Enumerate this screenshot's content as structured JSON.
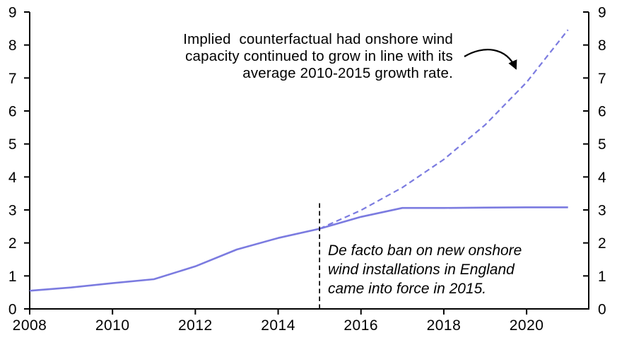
{
  "chart_data": {
    "type": "line",
    "title": "",
    "xlabel": "",
    "ylabel": "",
    "xlim": [
      2008,
      2021.5
    ],
    "ylim": [
      0,
      9
    ],
    "xticks": [
      2008,
      2010,
      2012,
      2014,
      2016,
      2018,
      2020
    ],
    "yticks": [
      0,
      1,
      2,
      3,
      4,
      5,
      6,
      7,
      8,
      9
    ],
    "y_axis_both_sides": true,
    "grid": false,
    "legend": "none",
    "line_color": "#7b7be0",
    "axis_color": "#000000",
    "series": [
      {
        "name": "actual-onshore-wind-capacity",
        "style": "solid",
        "x": [
          2008,
          2009,
          2010,
          2011,
          2012,
          2013,
          2014,
          2015,
          2016,
          2017,
          2018,
          2019,
          2020,
          2021
        ],
        "values": [
          0.55,
          0.65,
          0.78,
          0.9,
          1.29,
          1.8,
          2.15,
          2.43,
          2.79,
          3.06,
          3.06,
          3.07,
          3.08,
          3.08
        ]
      },
      {
        "name": "implied-counterfactual",
        "style": "dashed",
        "x": [
          2015,
          2016,
          2017,
          2018,
          2019,
          2020,
          2021
        ],
        "values": [
          2.43,
          2.99,
          3.68,
          4.53,
          5.58,
          6.87,
          8.46
        ]
      }
    ],
    "vline": {
      "x": 2015,
      "y_from": 0,
      "y_to": 3.22,
      "style": "dashed",
      "color": "#000000"
    }
  },
  "annotations": {
    "counterfactual": {
      "lines": [
        "Implied  counterfactual had onshore wind",
        "capacity continued to grow in line with its",
        "average 2010-2015 growth rate."
      ]
    },
    "ban": {
      "lines": [
        "De facto ban on new onshore",
        "wind installations in England",
        "came into force in 2015."
      ]
    }
  }
}
